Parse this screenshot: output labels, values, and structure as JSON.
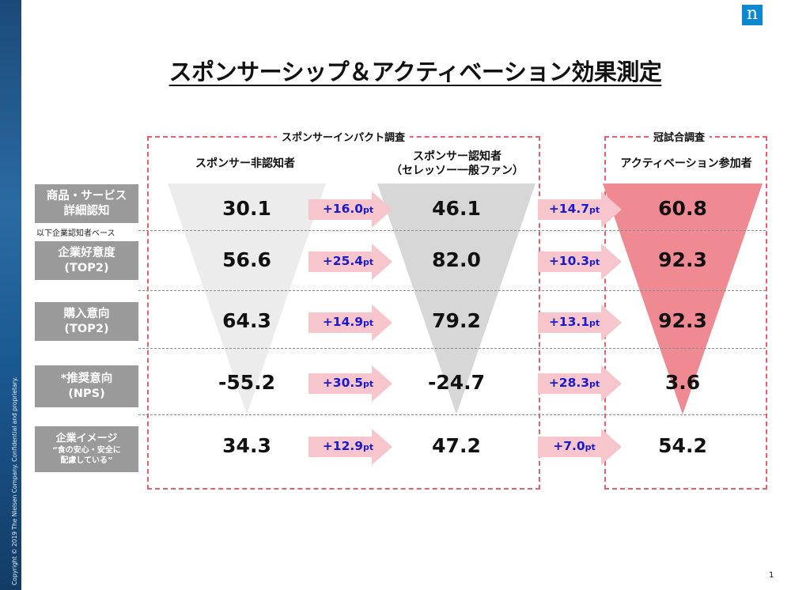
{
  "copyright": "Copyright © 2019 The Nielsen Company. Confidential and proprietary.",
  "logo_letter": "n",
  "title": "スポンサーシップ＆アクティベーション効果測定",
  "boxes": {
    "sponsor_impact": "スポンサーインパクト調査",
    "kanshi": "冠試合調査"
  },
  "columns": {
    "non_aware": "スポンサー非認知者",
    "aware": "スポンサー認知者",
    "aware_sub": "（セレッソー一般ファン）",
    "activation": "アクティベーション参加者"
  },
  "base_note": "以下企業認知者ベース",
  "rows": [
    {
      "label1": "商品・サービス",
      "label2": "詳細認知",
      "v1": "30.1",
      "d1": "+16.0",
      "v2": "46.1",
      "d2": "+14.7",
      "v3": "60.8"
    },
    {
      "label1": "企業好意度",
      "label2": "(TOP2)",
      "v1": "56.6",
      "d1": "+25.4",
      "v2": "82.0",
      "d2": "+10.3",
      "v3": "92.3"
    },
    {
      "label1": "購入意向",
      "label2": "(TOP2)",
      "v1": "64.3",
      "d1": "+14.9",
      "v2": "79.2",
      "d2": "+13.1",
      "v3": "92.3"
    },
    {
      "label1": "*推奨意向",
      "label2": "(NPS)",
      "v1": "-55.2",
      "d1": "+30.5",
      "v2": "-24.7",
      "d2": "+28.3",
      "v3": "3.6"
    },
    {
      "label1": "企業イメージ",
      "label2": "“食の安心・安全に",
      "label3": "配慮している”",
      "v1": "34.3",
      "d1": "+12.9",
      "v2": "47.2",
      "d2": "+7.0",
      "v3": "54.2"
    }
  ],
  "pt_unit": "pt",
  "page_number": "1",
  "colors": {
    "sidebar": "#1b5a93",
    "logo": "#0c88cf",
    "dash_border": "#e6606b",
    "funnel_light": "#ececec",
    "funnel_mid": "#d7d7d7",
    "funnel_red": "#ef8a93",
    "arrow_pink": "#f6c6cc",
    "delta_text": "#1a1ad0",
    "row_label_bg": "#9a9a9a"
  }
}
